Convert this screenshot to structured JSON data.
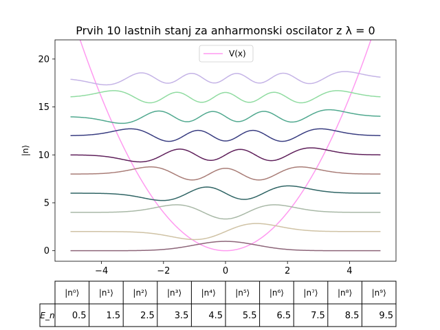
{
  "chart_data": {
    "type": "line",
    "title": "Prvih 10 lastnih stanj za anharmonski oscilator z λ = 0",
    "ylabel": "|n⟩",
    "xlabel": "",
    "xlim": [
      -5.5,
      5.5
    ],
    "ylim": [
      -1.1,
      22
    ],
    "x_ticks": [
      -4,
      -2,
      0,
      2,
      4
    ],
    "x_tick_labels": [
      "−4",
      "−2",
      "0",
      "2",
      "4"
    ],
    "y_ticks": [
      0,
      5,
      10,
      15,
      20
    ],
    "y_tick_labels": [
      "0",
      "5",
      "10",
      "15",
      "20"
    ],
    "x_range": [
      -5,
      5
    ],
    "grid": false,
    "legend": {
      "placement": "top-center",
      "entries": [
        "V(x)"
      ]
    },
    "potential": {
      "name": "V(x)",
      "formula": "x^2",
      "color": "#ff99f0"
    },
    "wavefunction_scale": 1.3,
    "series": [
      {
        "n": 0,
        "offset": 0,
        "color": "#8c6478"
      },
      {
        "n": 1,
        "offset": 2,
        "color": "#cfc2a4"
      },
      {
        "n": 2,
        "offset": 4,
        "color": "#a8b8a6"
      },
      {
        "n": 3,
        "offset": 6,
        "color": "#2f6464"
      },
      {
        "n": 4,
        "offset": 8,
        "color": "#a87c76"
      },
      {
        "n": 5,
        "offset": 10,
        "color": "#5e1f5a"
      },
      {
        "n": 6,
        "offset": 12,
        "color": "#383c80"
      },
      {
        "n": 7,
        "offset": 14,
        "color": "#4fa88e"
      },
      {
        "n": 8,
        "offset": 16,
        "color": "#8fdba0"
      },
      {
        "n": 9,
        "offset": 18,
        "color": "#c4b3e6"
      }
    ]
  },
  "table": {
    "row_label": "E_n",
    "columns": [
      "|n⁰⟩",
      "|n¹⟩",
      "|n²⟩",
      "|n³⟩",
      "|n⁴⟩",
      "|n⁵⟩",
      "|n⁶⟩",
      "|n⁷⟩",
      "|n⁸⟩",
      "|n⁹⟩"
    ],
    "values": [
      "0.5",
      "1.5",
      "2.5",
      "3.5",
      "4.5",
      "5.5",
      "6.5",
      "7.5",
      "8.5",
      "9.5"
    ]
  }
}
